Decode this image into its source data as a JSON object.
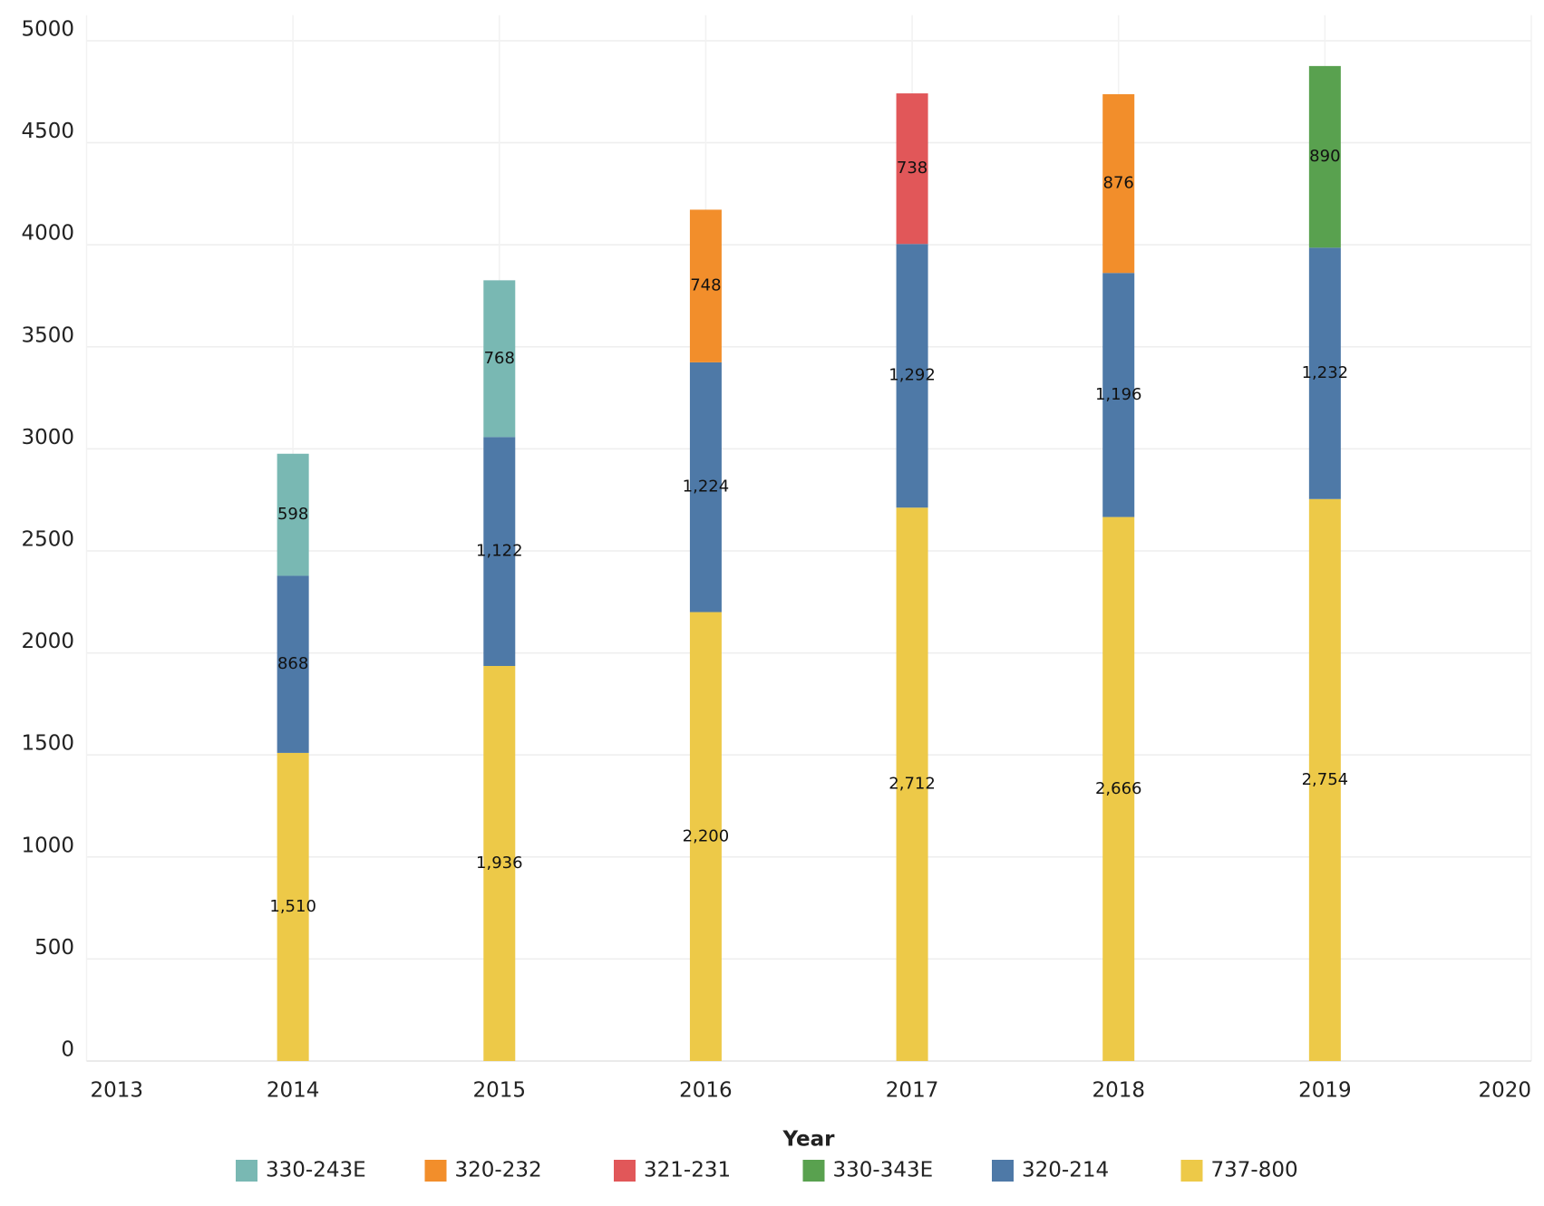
{
  "chart_data": {
    "type": "bar",
    "stacked": true,
    "x_label": "Year",
    "x": [
      2014,
      2015,
      2016,
      2017,
      2018,
      2019
    ],
    "xlim": [
      2013,
      2020
    ],
    "xticks": [
      2013,
      2014,
      2015,
      2016,
      2017,
      2018,
      2019,
      2020
    ],
    "ylim": [
      0,
      5125
    ],
    "yticks": [
      0,
      500,
      1000,
      1500,
      2000,
      2500,
      3000,
      3500,
      4000,
      4500,
      5000
    ],
    "grid": true,
    "legend": "bottom",
    "series": [
      {
        "name": "330-243E",
        "color": "#79b8b3",
        "values": [
          598,
          768,
          null,
          null,
          null,
          null
        ],
        "value_labels": [
          "598",
          "768",
          null,
          null,
          null,
          null
        ]
      },
      {
        "name": "320-232",
        "color": "#f28e2b",
        "values": [
          null,
          null,
          748,
          null,
          876,
          null
        ],
        "value_labels": [
          null,
          null,
          "748",
          null,
          "876",
          null
        ]
      },
      {
        "name": "321-231",
        "color": "#e15759",
        "values": [
          null,
          null,
          null,
          738,
          null,
          null
        ],
        "value_labels": [
          null,
          null,
          null,
          "738",
          null,
          null
        ]
      },
      {
        "name": "330-343E",
        "color": "#59a14f",
        "values": [
          null,
          null,
          null,
          null,
          null,
          890
        ],
        "value_labels": [
          null,
          null,
          null,
          null,
          null,
          "890"
        ]
      },
      {
        "name": "320-214",
        "color": "#4e79a7",
        "values": [
          868,
          1122,
          1224,
          1292,
          1196,
          1232
        ],
        "value_labels": [
          "868",
          "1,122",
          "1,224",
          "1,292",
          "1,196",
          "1,232"
        ]
      },
      {
        "name": "737-800",
        "color": "#edc948",
        "values": [
          1510,
          1936,
          2200,
          2712,
          2666,
          2754
        ],
        "value_labels": [
          "1,510",
          "1,936",
          "2,200",
          "2,712",
          "2,666",
          "2,754"
        ]
      }
    ]
  }
}
